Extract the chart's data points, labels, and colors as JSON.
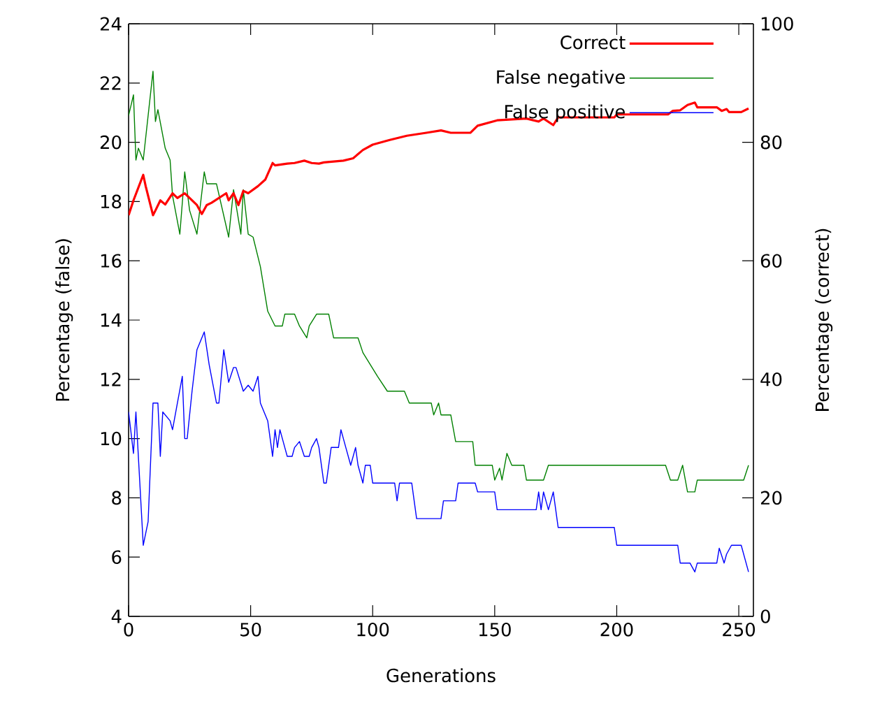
{
  "chart_data": {
    "type": "line",
    "xlabel": "Generations",
    "ylabel": "Percentage (false)",
    "y2label": "Percentage (correct)",
    "xlim": [
      0,
      256
    ],
    "xticks": [
      0,
      50,
      100,
      150,
      200,
      250
    ],
    "ylim": [
      4,
      24
    ],
    "yticks": [
      4,
      6,
      8,
      10,
      12,
      14,
      16,
      18,
      20,
      22,
      24
    ],
    "y2lim": [
      0,
      100
    ],
    "y2ticks": [
      0,
      20,
      40,
      60,
      80,
      100
    ],
    "grid": false,
    "legend": "top right",
    "line_style": "solid",
    "series": [
      {
        "name": "Correct",
        "color": "#ff0000",
        "axis": "y2",
        "x": [
          0,
          2,
          6,
          7,
          10,
          11,
          13,
          15,
          18,
          20,
          23,
          25,
          28,
          30,
          32,
          34,
          37,
          40,
          41,
          43,
          45,
          47,
          49,
          53,
          56,
          59,
          60,
          65,
          68,
          72,
          75,
          78,
          80,
          88,
          92,
          96,
          100,
          107,
          114,
          122,
          128,
          132,
          140,
          143,
          151,
          163,
          168,
          170,
          174,
          176,
          199,
          200,
          221,
          223,
          226,
          229,
          232,
          233,
          241,
          243,
          245,
          246,
          251,
          254
        ],
        "values": [
          67.7,
          70.2,
          74.5,
          72.6,
          67.7,
          68.5,
          70.2,
          69.5,
          71.4,
          70.6,
          71.4,
          70.6,
          69.4,
          67.9,
          69.4,
          69.8,
          70.6,
          71.4,
          70.2,
          71.4,
          69.4,
          71.8,
          71.4,
          72.6,
          73.7,
          76.5,
          76.1,
          76.4,
          76.5,
          76.9,
          76.5,
          76.4,
          76.6,
          76.9,
          77.3,
          78.7,
          79.6,
          80.4,
          81.1,
          81.6,
          82.0,
          81.6,
          81.6,
          82.8,
          83.7,
          84.0,
          83.5,
          84.0,
          82.9,
          84.2,
          84.2,
          84.7,
          84.7,
          85.3,
          85.4,
          86.3,
          86.7,
          85.9,
          85.9,
          85.3,
          85.6,
          85.1,
          85.1,
          85.7
        ]
      },
      {
        "name": "False negative",
        "color": "#008000",
        "axis": "y",
        "x": [
          0,
          2,
          3,
          4,
          6,
          10,
          11,
          12,
          15,
          17,
          18,
          21,
          23,
          25,
          28,
          31,
          32,
          36,
          41,
          43,
          46,
          47,
          49,
          51,
          54,
          57,
          60,
          63,
          64,
          68,
          70,
          73,
          74,
          77,
          82,
          84,
          94,
          96,
          99,
          102,
          106,
          113,
          115,
          124,
          125,
          127,
          128,
          132,
          134,
          141,
          142,
          149,
          150,
          152,
          153,
          155,
          157,
          162,
          163,
          170,
          172,
          220,
          222,
          225,
          227,
          229,
          232,
          233,
          252,
          254
        ],
        "values": [
          20.9,
          21.6,
          19.4,
          19.8,
          19.4,
          22.4,
          20.7,
          21.1,
          19.8,
          19.4,
          18.2,
          16.9,
          19.0,
          17.7,
          16.9,
          19.0,
          18.6,
          18.6,
          16.8,
          18.4,
          16.9,
          18.4,
          16.9,
          16.8,
          15.8,
          14.3,
          13.8,
          13.8,
          14.2,
          14.2,
          13.8,
          13.4,
          13.8,
          14.2,
          14.2,
          13.4,
          13.4,
          12.9,
          12.5,
          12.1,
          11.6,
          11.6,
          11.2,
          11.2,
          10.8,
          11.2,
          10.8,
          10.8,
          9.9,
          9.9,
          9.1,
          9.1,
          8.6,
          9.0,
          8.6,
          9.5,
          9.1,
          9.1,
          8.6,
          8.6,
          9.1,
          9.1,
          8.6,
          8.6,
          9.1,
          8.2,
          8.2,
          8.6,
          8.6,
          9.1
        ]
      },
      {
        "name": "False positive",
        "color": "#0000ff",
        "axis": "y",
        "x": [
          0,
          2,
          3,
          6,
          8,
          10,
          12,
          13,
          14,
          17,
          18,
          20,
          22,
          23,
          24,
          26,
          28,
          29,
          31,
          33,
          36,
          37,
          39,
          41,
          43,
          44,
          47,
          49,
          51,
          53,
          54,
          57,
          59,
          60,
          61,
          62,
          64,
          65,
          67,
          68,
          70,
          72,
          74,
          75,
          77,
          78,
          80,
          81,
          83,
          86,
          87,
          89,
          91,
          93,
          94,
          96,
          97,
          99,
          100,
          109,
          110,
          111,
          116,
          118,
          128,
          129,
          134,
          135,
          142,
          143,
          150,
          151,
          167,
          168,
          169,
          170,
          172,
          174,
          176,
          199,
          200,
          225,
          226,
          230,
          232,
          233,
          241,
          242,
          244,
          245,
          247,
          251,
          254
        ],
        "values": [
          10.9,
          9.5,
          10.9,
          6.4,
          7.2,
          11.2,
          11.2,
          9.4,
          10.9,
          10.6,
          10.3,
          11.2,
          12.1,
          10.0,
          10.0,
          11.6,
          13.0,
          13.2,
          13.6,
          12.5,
          11.2,
          11.2,
          13.0,
          11.9,
          12.4,
          12.4,
          11.6,
          11.8,
          11.6,
          12.1,
          11.2,
          10.6,
          9.4,
          10.3,
          9.7,
          10.3,
          9.7,
          9.4,
          9.4,
          9.7,
          9.9,
          9.4,
          9.4,
          9.7,
          10.0,
          9.7,
          8.5,
          8.5,
          9.7,
          9.7,
          10.3,
          9.7,
          9.1,
          9.7,
          9.1,
          8.5,
          9.1,
          9.1,
          8.5,
          8.5,
          7.9,
          8.5,
          8.5,
          7.3,
          7.3,
          7.9,
          7.9,
          8.5,
          8.5,
          8.2,
          8.2,
          7.6,
          7.6,
          8.2,
          7.6,
          8.2,
          7.6,
          8.2,
          7.0,
          7.0,
          6.4,
          6.4,
          5.8,
          5.8,
          5.5,
          5.8,
          5.8,
          6.3,
          5.8,
          6.1,
          6.4,
          6.4,
          5.5
        ]
      }
    ]
  }
}
